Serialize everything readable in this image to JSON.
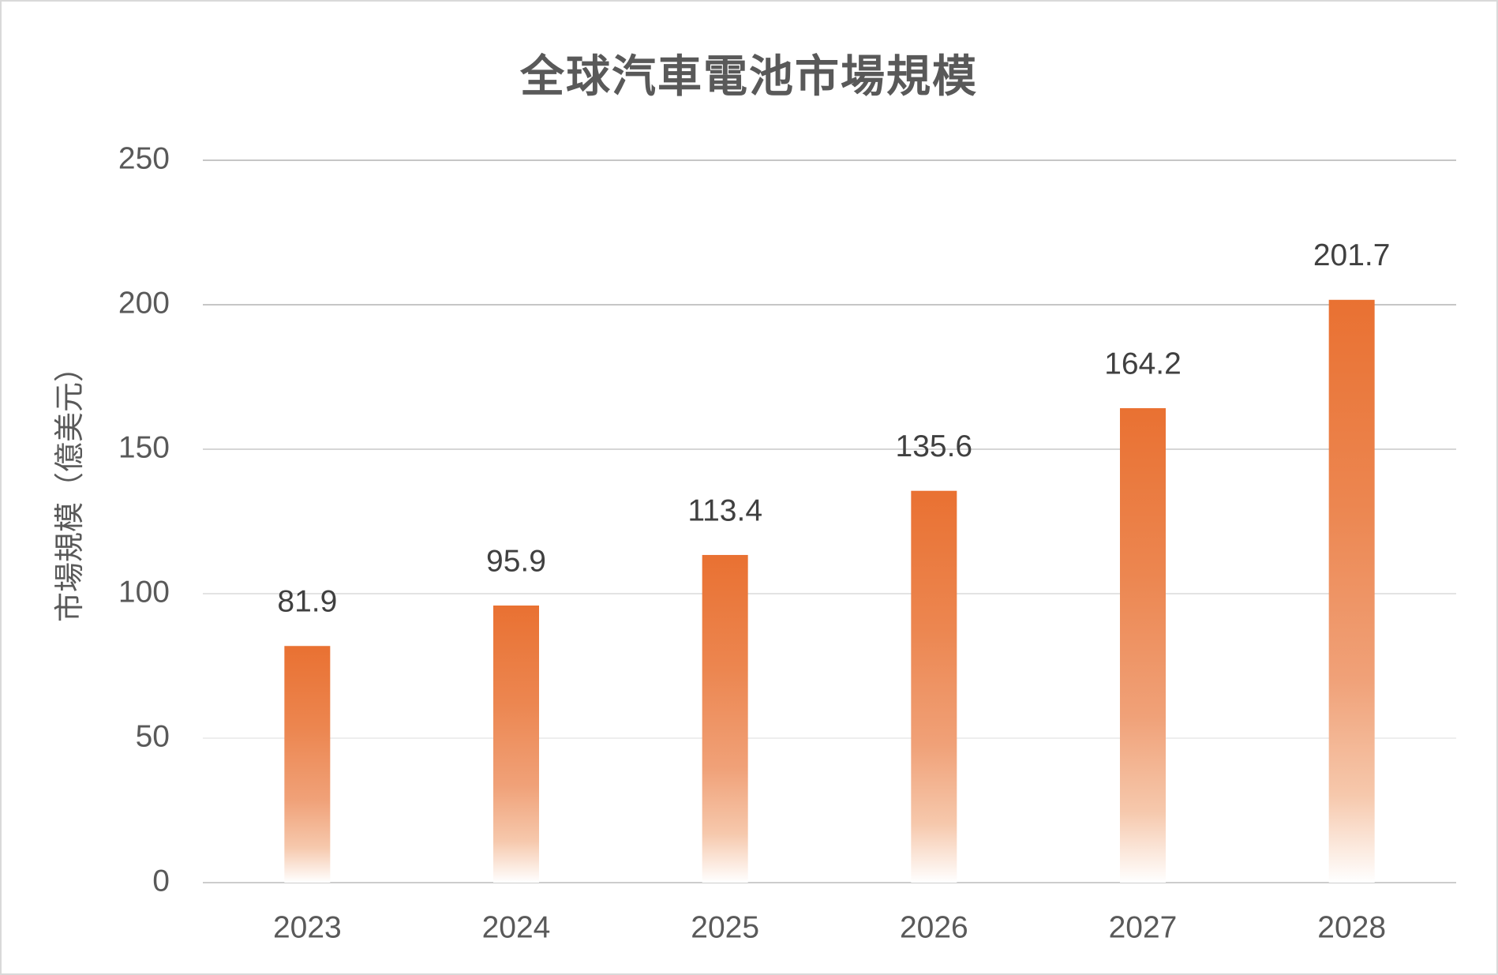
{
  "chart_data": {
    "type": "bar",
    "title": "全球汽車電池市場規模",
    "xlabel": "",
    "ylabel": "市場規模（億美元）",
    "categories": [
      "2023",
      "2024",
      "2025",
      "2026",
      "2027",
      "2028"
    ],
    "values": [
      81.9,
      95.9,
      113.4,
      135.6,
      164.2,
      201.7
    ],
    "data_labels": [
      "81.9",
      "95.9",
      "113.4",
      "135.6",
      "164.2",
      "201.7"
    ],
    "ylim": [
      0,
      250
    ],
    "yticks": [
      0,
      50,
      100,
      150,
      200,
      250
    ],
    "grid": true,
    "legend": "none",
    "bar_color": "#E97132"
  }
}
